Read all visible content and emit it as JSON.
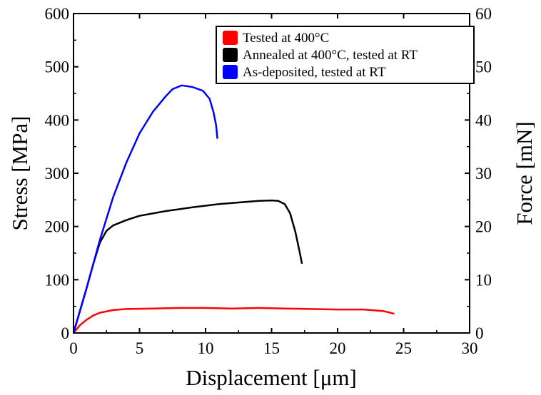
{
  "chart_data": {
    "type": "line",
    "xlabel": "Displacement [μm]",
    "ylabel": "Stress [MPa]",
    "y2label": "Force [mN]",
    "xlim": [
      0,
      30
    ],
    "ylim": [
      0,
      600
    ],
    "y2lim": [
      0,
      60
    ],
    "xticks": [
      0,
      5,
      10,
      15,
      20,
      25,
      30
    ],
    "yticks": [
      0,
      100,
      200,
      300,
      400,
      500,
      600
    ],
    "y2ticks": [
      0,
      10,
      20,
      30,
      40,
      50,
      60
    ],
    "grid": false,
    "legend_position": "top-right",
    "series": [
      {
        "name": "Tested at 400°C",
        "color": "#ff0000",
        "x": [
          0,
          0.5,
          1,
          1.5,
          2,
          3,
          4,
          6,
          8,
          10,
          12,
          14,
          16,
          18,
          20,
          22,
          23.5,
          24.3
        ],
        "y": [
          0,
          15,
          25,
          33,
          38,
          43,
          45,
          46,
          47,
          47,
          46,
          47,
          46,
          45,
          44,
          44,
          41,
          36
        ]
      },
      {
        "name": "Annealed at 400°C, tested at RT",
        "color": "#000000",
        "x": [
          0,
          1,
          1.5,
          2,
          2.5,
          3,
          4,
          5,
          7,
          9,
          11,
          13,
          14,
          15,
          15.5,
          16,
          16.4,
          16.8,
          17.1,
          17.3
        ],
        "y": [
          0,
          85,
          130,
          170,
          192,
          202,
          212,
          220,
          229,
          236,
          242,
          246,
          248,
          249,
          248,
          242,
          225,
          190,
          155,
          130
        ]
      },
      {
        "name": "As-deposited, tested at RT",
        "color": "#0000ff",
        "x": [
          0,
          1,
          2,
          3,
          4,
          5,
          6,
          7,
          7.5,
          8.2,
          9,
          9.8,
          10.3,
          10.6,
          10.8,
          10.9
        ],
        "y": [
          0,
          85,
          175,
          255,
          320,
          375,
          415,
          445,
          458,
          465,
          462,
          455,
          440,
          415,
          390,
          365
        ]
      }
    ]
  }
}
